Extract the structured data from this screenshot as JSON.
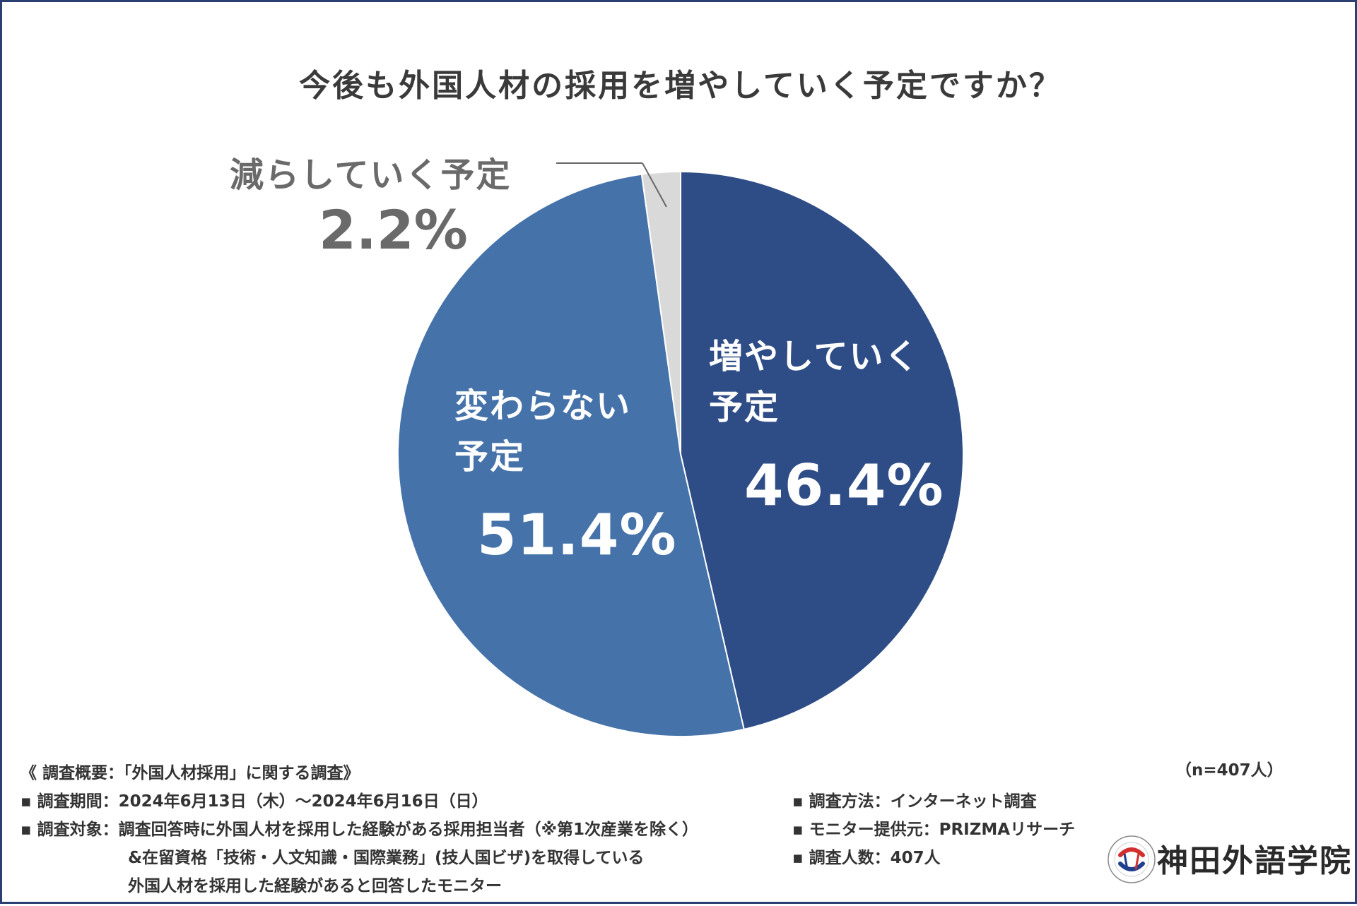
{
  "chart_data": {
    "type": "pie",
    "title": "今後も外国人材の採用を増やしていく予定ですか？",
    "slices": [
      {
        "label_line1": "増やしていく",
        "label_line2": "予定",
        "value": 46.4,
        "value_label": "46.4%",
        "color": "#2e4d86"
      },
      {
        "label_line1": "変わらない",
        "label_line2": "予定",
        "value": 51.4,
        "value_label": "51.4%",
        "color": "#4472a9"
      },
      {
        "label": "減らしていく予定",
        "value": 2.2,
        "value_label": "2.2%",
        "color": "#d9d9d9"
      }
    ]
  },
  "survey": {
    "heading": "《 調査概要：「外国人材採用」に関する調査》",
    "n": "（n=407人）",
    "period": "▪ 調査期間：2024年6月13日（木）～2024年6月16日（日）",
    "target_1": "▪ 調査対象：調査回答時に外国人材を採用した経験がある採用担当者（※第1次産業を除く）",
    "target_2": "&在留資格「技術・人文知識・国際業務」(技人国ビザ)を取得している",
    "target_3": "外国人材を採用した経験があると回答したモニター",
    "method": "▪ 調査方法：インターネット調査",
    "provider": "▪ モニター提供元：PRIZMAリサーチ",
    "count": "▪ 調査人数：407人"
  },
  "logo": {
    "name": "神田外語学院",
    "icon": "kanda-institute-emblem-icon"
  },
  "colors": {
    "frame": "#2b3f73",
    "title": "#3a3a3a",
    "outside_label": "#6a6a6a"
  }
}
